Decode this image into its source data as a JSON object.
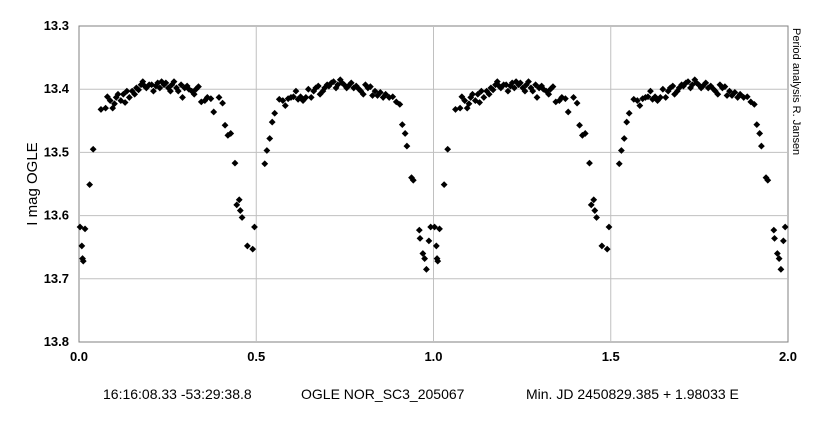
{
  "chart_data": {
    "type": "scatter",
    "ylabel": "I mag OGLE",
    "side_note": "Period analysis  R. Jansen",
    "footer": {
      "coords": "16:16:08.33 -53:29:38.8",
      "object": "OGLE NOR_SC3_205067",
      "ephemeris": "Min. JD 2450829.385 + 1.98033 E"
    },
    "xlim": [
      0.0,
      2.0
    ],
    "ylim": [
      13.3,
      13.8
    ],
    "y_inverted": true,
    "xticks": [
      "0.0",
      "0.5",
      "1.0",
      "1.5",
      "2.0"
    ],
    "yticks": [
      "13.3",
      "13.4",
      "13.5",
      "13.6",
      "13.7",
      "13.8"
    ],
    "grid": true,
    "marker": "diamond",
    "color": "#000000",
    "period_repeat": 1.0,
    "series": [
      {
        "points": [
          [
            0.003,
            13.618
          ],
          [
            0.008,
            13.648
          ],
          [
            0.01,
            13.668
          ],
          [
            0.012,
            13.672
          ],
          [
            0.017,
            13.621
          ],
          [
            0.03,
            13.551
          ],
          [
            0.04,
            13.495
          ],
          [
            0.062,
            13.432
          ],
          [
            0.075,
            13.43
          ],
          [
            0.08,
            13.412
          ],
          [
            0.088,
            13.418
          ],
          [
            0.095,
            13.43
          ],
          [
            0.1,
            13.423
          ],
          [
            0.105,
            13.413
          ],
          [
            0.11,
            13.408
          ],
          [
            0.118,
            13.418
          ],
          [
            0.125,
            13.408
          ],
          [
            0.13,
            13.421
          ],
          [
            0.135,
            13.403
          ],
          [
            0.142,
            13.413
          ],
          [
            0.15,
            13.403
          ],
          [
            0.157,
            13.408
          ],
          [
            0.162,
            13.398
          ],
          [
            0.168,
            13.401
          ],
          [
            0.175,
            13.393
          ],
          [
            0.18,
            13.388
          ],
          [
            0.185,
            13.395
          ],
          [
            0.19,
            13.398
          ],
          [
            0.198,
            13.393
          ],
          [
            0.205,
            13.393
          ],
          [
            0.21,
            13.403
          ],
          [
            0.217,
            13.395
          ],
          [
            0.222,
            13.39
          ],
          [
            0.228,
            13.398
          ],
          [
            0.233,
            13.388
          ],
          [
            0.24,
            13.393
          ],
          [
            0.245,
            13.39
          ],
          [
            0.252,
            13.398
          ],
          [
            0.258,
            13.403
          ],
          [
            0.262,
            13.393
          ],
          [
            0.268,
            13.388
          ],
          [
            0.275,
            13.398
          ],
          [
            0.28,
            13.403
          ],
          [
            0.288,
            13.393
          ],
          [
            0.292,
            13.413
          ],
          [
            0.298,
            13.398
          ],
          [
            0.305,
            13.395
          ],
          [
            0.31,
            13.4
          ],
          [
            0.318,
            13.403
          ],
          [
            0.325,
            13.408
          ],
          [
            0.33,
            13.4
          ],
          [
            0.337,
            13.396
          ],
          [
            0.345,
            13.42
          ],
          [
            0.355,
            13.418
          ],
          [
            0.362,
            13.413
          ],
          [
            0.372,
            13.415
          ],
          [
            0.38,
            13.436
          ],
          [
            0.395,
            13.413
          ],
          [
            0.405,
            13.422
          ],
          [
            0.412,
            13.457
          ],
          [
            0.42,
            13.473
          ],
          [
            0.428,
            13.47
          ],
          [
            0.44,
            13.517
          ],
          [
            0.445,
            13.583
          ],
          [
            0.452,
            13.575
          ],
          [
            0.455,
            13.592
          ],
          [
            0.46,
            13.603
          ],
          [
            0.475,
            13.648
          ],
          [
            0.49,
            13.653
          ],
          [
            0.495,
            13.618
          ],
          [
            0.524,
            13.518
          ],
          [
            0.53,
            13.497
          ],
          [
            0.538,
            13.478
          ],
          [
            0.545,
            13.452
          ],
          [
            0.552,
            13.438
          ],
          [
            0.565,
            13.416
          ],
          [
            0.575,
            13.418
          ],
          [
            0.582,
            13.426
          ],
          [
            0.59,
            13.415
          ],
          [
            0.598,
            13.413
          ],
          [
            0.605,
            13.412
          ],
          [
            0.612,
            13.403
          ],
          [
            0.618,
            13.416
          ],
          [
            0.625,
            13.412
          ],
          [
            0.632,
            13.418
          ],
          [
            0.64,
            13.413
          ],
          [
            0.647,
            13.4
          ],
          [
            0.655,
            13.413
          ],
          [
            0.662,
            13.403
          ],
          [
            0.668,
            13.398
          ],
          [
            0.675,
            13.395
          ],
          [
            0.68,
            13.408
          ],
          [
            0.688,
            13.403
          ],
          [
            0.693,
            13.398
          ],
          [
            0.7,
            13.393
          ],
          [
            0.705,
            13.395
          ],
          [
            0.712,
            13.39
          ],
          [
            0.718,
            13.388
          ],
          [
            0.725,
            13.398
          ],
          [
            0.73,
            13.393
          ],
          [
            0.737,
            13.385
          ],
          [
            0.742,
            13.39
          ],
          [
            0.748,
            13.393
          ],
          [
            0.755,
            13.398
          ],
          [
            0.76,
            13.395
          ],
          [
            0.768,
            13.39
          ],
          [
            0.775,
            13.398
          ],
          [
            0.782,
            13.395
          ],
          [
            0.79,
            13.4
          ],
          [
            0.795,
            13.403
          ],
          [
            0.802,
            13.408
          ],
          [
            0.808,
            13.393
          ],
          [
            0.815,
            13.398
          ],
          [
            0.822,
            13.396
          ],
          [
            0.828,
            13.41
          ],
          [
            0.835,
            13.403
          ],
          [
            0.842,
            13.41
          ],
          [
            0.85,
            13.405
          ],
          [
            0.858,
            13.413
          ],
          [
            0.865,
            13.408
          ],
          [
            0.875,
            13.413
          ],
          [
            0.885,
            13.412
          ],
          [
            0.895,
            13.42
          ],
          [
            0.905,
            13.424
          ],
          [
            0.912,
            13.456
          ],
          [
            0.92,
            13.47
          ],
          [
            0.925,
            13.49
          ],
          [
            0.938,
            13.54
          ],
          [
            0.943,
            13.544
          ],
          [
            0.96,
            13.623
          ],
          [
            0.962,
            13.636
          ],
          [
            0.97,
            13.66
          ],
          [
            0.975,
            13.668
          ],
          [
            0.98,
            13.685
          ],
          [
            0.987,
            13.64
          ],
          [
            0.992,
            13.618
          ]
        ]
      }
    ]
  }
}
